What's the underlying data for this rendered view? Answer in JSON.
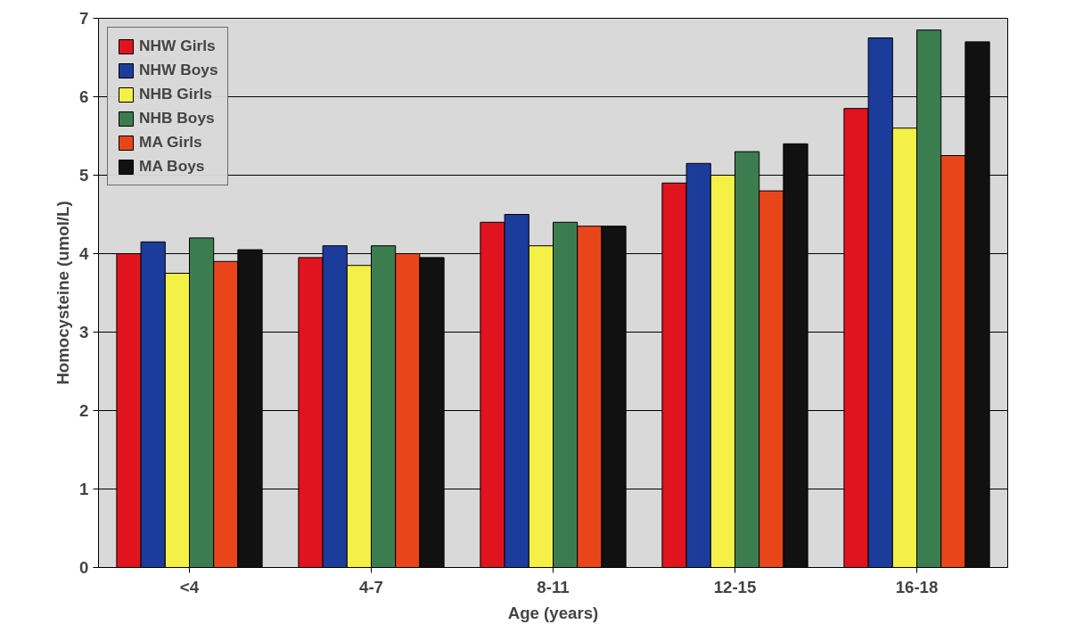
{
  "chart_data": {
    "type": "bar",
    "xlabel": "Age (years)",
    "ylabel": "Homocysteine (umol/L)",
    "categories": [
      "<4",
      "4-7",
      "8-11",
      "12-15",
      "16-18"
    ],
    "series": [
      {
        "name": "NHW Girls",
        "color": "#e0141e",
        "values": [
          4.0,
          3.95,
          4.4,
          4.9,
          5.85
        ]
      },
      {
        "name": "NHW Boys",
        "color": "#1c3c9c",
        "values": [
          4.15,
          4.1,
          4.5,
          5.15,
          6.75
        ]
      },
      {
        "name": "NHB Girls",
        "color": "#f5f048",
        "values": [
          3.75,
          3.85,
          4.1,
          5.0,
          5.6
        ]
      },
      {
        "name": "NHB Boys",
        "color": "#3c7d50",
        "values": [
          4.2,
          4.1,
          4.4,
          5.3,
          6.85
        ]
      },
      {
        "name": "MA Girls",
        "color": "#e8461a",
        "values": [
          3.9,
          4.0,
          4.35,
          4.8,
          5.25
        ]
      },
      {
        "name": "MA Boys",
        "color": "#111111",
        "values": [
          4.05,
          3.95,
          4.35,
          5.4,
          6.7
        ]
      }
    ],
    "ylim": [
      0,
      7
    ],
    "yticks": [
      0,
      1,
      2,
      3,
      4,
      5,
      6,
      7
    ],
    "grid": "y",
    "legend": "top left"
  }
}
